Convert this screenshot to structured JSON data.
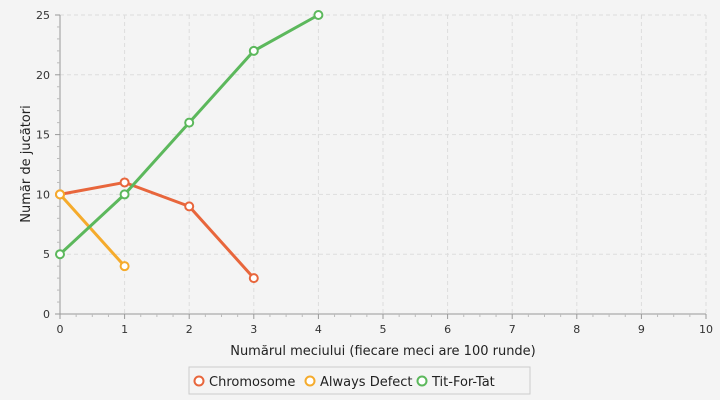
{
  "chart_data": {
    "type": "line",
    "title": "",
    "xlabel": "Numărul meciului (fiecare meci are 100 runde)",
    "ylabel": "Număr de jucători",
    "xlim": [
      0,
      10
    ],
    "ylim": [
      0,
      25
    ],
    "xticks": [
      0,
      1,
      2,
      3,
      4,
      5,
      6,
      7,
      8,
      9,
      10
    ],
    "yticks": [
      0,
      5,
      10,
      15,
      20,
      25
    ],
    "grid": true,
    "legend_position": "bottom-center",
    "series": [
      {
        "name": "Chromosome",
        "color": "#e8663c",
        "x": [
          0,
          1,
          2,
          3
        ],
        "y": [
          10,
          11,
          9,
          3
        ]
      },
      {
        "name": "Always Defect",
        "color": "#f5ab2c",
        "x": [
          0,
          1
        ],
        "y": [
          10,
          4
        ]
      },
      {
        "name": "Tit-For-Tat",
        "color": "#5cb85c",
        "x": [
          0,
          1,
          2,
          3,
          4
        ],
        "y": [
          5,
          10,
          16,
          22,
          25
        ]
      }
    ]
  }
}
